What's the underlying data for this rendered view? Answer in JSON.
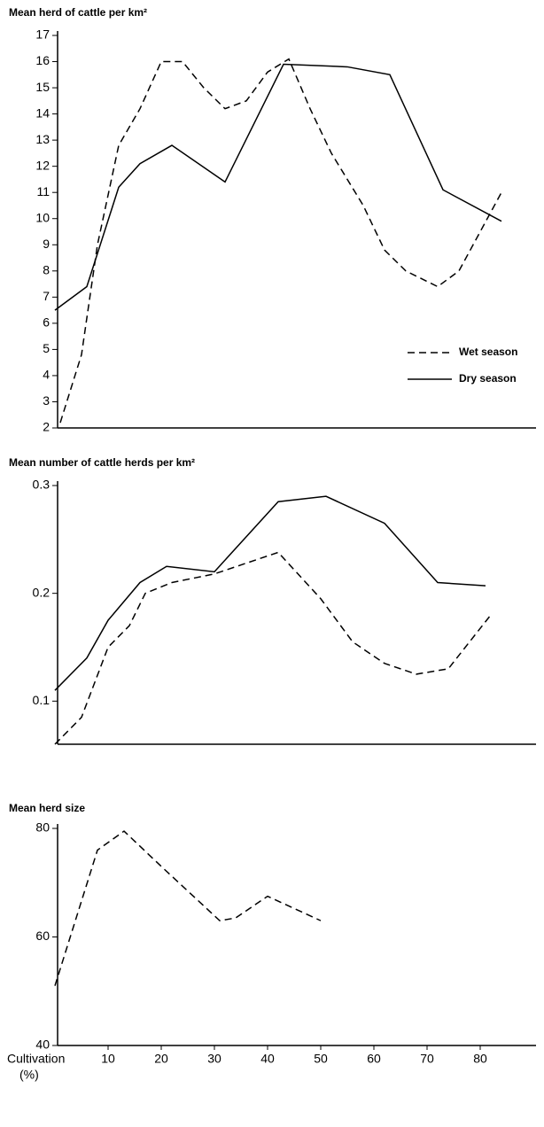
{
  "chart_data": [
    {
      "type": "line",
      "title": "Mean herd of cattle per km²",
      "xlim": [
        0,
        90
      ],
      "ylim": [
        2,
        17
      ],
      "yticks": [
        2,
        3,
        4,
        5,
        6,
        7,
        8,
        9,
        10,
        11,
        12,
        13,
        14,
        15,
        16,
        17
      ],
      "legend": "right",
      "series": [
        {
          "name": "Wet season",
          "color": "#000000",
          "dash": true,
          "x": [
            1,
            5,
            8,
            12,
            16,
            20,
            24,
            28,
            32,
            36,
            40,
            44,
            48,
            52,
            58,
            62,
            66,
            72,
            76,
            80,
            84
          ],
          "values": [
            2.2,
            4.8,
            9,
            12.8,
            14.2,
            16,
            16,
            15,
            14.2,
            14.5,
            15.6,
            16.1,
            14.2,
            12.5,
            10.5,
            8.8,
            8,
            7.4,
            8,
            9.5,
            11
          ]
        },
        {
          "name": "Dry season",
          "color": "#000000",
          "dash": false,
          "x": [
            0,
            6,
            12,
            16,
            22,
            32,
            43,
            55,
            63,
            73,
            84
          ],
          "values": [
            6.5,
            7.4,
            11.2,
            12.1,
            12.8,
            11.4,
            15.9,
            15.8,
            15.5,
            11.1,
            9.9
          ]
        }
      ]
    },
    {
      "type": "line",
      "title": "Mean number of cattle herds per km²",
      "xlim": [
        0,
        90
      ],
      "ylim": [
        0.06,
        0.3
      ],
      "yticks": [
        0.1,
        0.2,
        0.3
      ],
      "series": [
        {
          "name": "Wet season",
          "color": "#000000",
          "dash": true,
          "x": [
            0,
            5,
            10,
            14,
            17,
            22,
            30,
            42,
            50,
            56,
            62,
            68,
            74,
            82
          ],
          "values": [
            0.06,
            0.085,
            0.15,
            0.17,
            0.2,
            0.21,
            0.218,
            0.238,
            0.195,
            0.155,
            0.135,
            0.125,
            0.13,
            0.18
          ]
        },
        {
          "name": "Dry season",
          "color": "#000000",
          "dash": false,
          "x": [
            0,
            6,
            10,
            16,
            21,
            30,
            42,
            51,
            62,
            72,
            81
          ],
          "values": [
            0.11,
            0.14,
            0.175,
            0.21,
            0.225,
            0.22,
            0.285,
            0.29,
            0.265,
            0.21,
            0.207
          ]
        }
      ]
    },
    {
      "type": "line",
      "title": "Mean herd size",
      "xlim": [
        0,
        90
      ],
      "ylim": [
        40,
        80
      ],
      "yticks": [
        40,
        60,
        80
      ],
      "xticks": [
        10,
        20,
        30,
        40,
        50,
        60,
        70,
        80
      ],
      "xlabel": "Cultivation",
      "xlabel_unit": "(%)",
      "series": [
        {
          "color": "#000000",
          "dash": true,
          "x": [
            0,
            8,
            13,
            20,
            31,
            34,
            40,
            50
          ],
          "values": [
            51,
            76,
            79.5,
            73,
            63,
            63.5,
            67.5,
            63
          ]
        }
      ]
    }
  ]
}
